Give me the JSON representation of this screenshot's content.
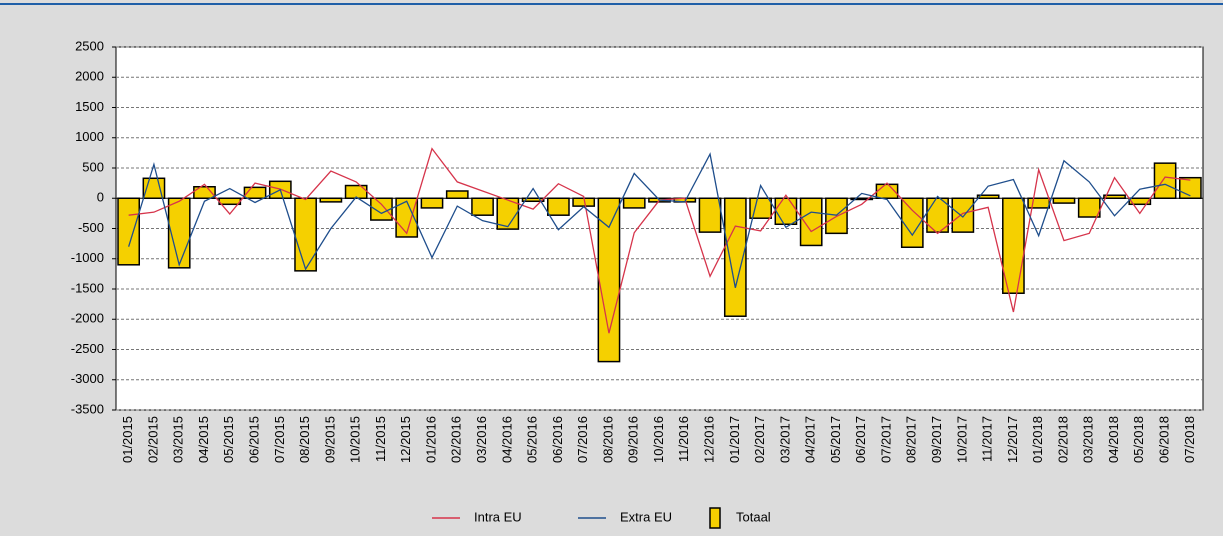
{
  "chart_data": {
    "type": "bar",
    "categories": [
      "01/2015",
      "02/2015",
      "03/2015",
      "04/2015",
      "05/2015",
      "06/2015",
      "07/2015",
      "08/2015",
      "09/2015",
      "10/2015",
      "11/2015",
      "12/2015",
      "01/2016",
      "02/2016",
      "03/2016",
      "04/2016",
      "05/2016",
      "06/2016",
      "07/2016",
      "08/2016",
      "09/2016",
      "10/2016",
      "11/2016",
      "12/2016",
      "01/2017",
      "02/2017",
      "03/2017",
      "04/2017",
      "05/2017",
      "06/2017",
      "07/2017",
      "08/2017",
      "09/2017",
      "10/2017",
      "11/2017",
      "12/2017",
      "01/2018",
      "02/2018",
      "03/2018",
      "04/2018",
      "05/2018",
      "06/2018",
      "07/2018"
    ],
    "series": [
      {
        "name": "Intra EU",
        "type": "line",
        "color": "#d6344b",
        "values": [
          -280,
          -230,
          -50,
          230,
          -260,
          250,
          150,
          -20,
          450,
          270,
          -100,
          -580,
          820,
          270,
          120,
          -30,
          -180,
          240,
          30,
          -2230,
          -570,
          -30,
          0,
          -1290,
          -460,
          -540,
          50,
          -550,
          -300,
          -100,
          250,
          -200,
          -580,
          -250,
          -150,
          -1880,
          470,
          -700,
          -580,
          340,
          -250,
          350,
          300
        ]
      },
      {
        "name": "Extra EU",
        "type": "line",
        "color": "#1f4e8c",
        "values": [
          -800,
          560,
          -1100,
          -50,
          160,
          -70,
          140,
          -1170,
          -500,
          20,
          -250,
          -50,
          -980,
          -130,
          -370,
          -470,
          160,
          -520,
          -140,
          -480,
          410,
          -30,
          -60,
          730,
          -1480,
          210,
          -480,
          -230,
          -280,
          80,
          -20,
          -610,
          30,
          -310,
          200,
          310,
          -620,
          620,
          270,
          -290,
          150,
          230,
          40
        ]
      },
      {
        "name": "Totaal",
        "type": "bar",
        "color": "#f5d000",
        "values": [
          -1100,
          330,
          -1150,
          190,
          -100,
          180,
          280,
          -1200,
          -60,
          210,
          -360,
          -640,
          -160,
          120,
          -280,
          -510,
          -50,
          -280,
          -130,
          -2700,
          -160,
          -60,
          -60,
          -560,
          -1950,
          -330,
          -430,
          -780,
          -580,
          -20,
          230,
          -810,
          -560,
          -560,
          50,
          -1570,
          -160,
          -80,
          -310,
          50,
          -100,
          580,
          340
        ]
      }
    ],
    "ylim": [
      -3500,
      2500
    ],
    "yticks": [
      -3500,
      -3000,
      -2500,
      -2000,
      -1500,
      -1000,
      -500,
      0,
      500,
      1000,
      1500,
      2000,
      2500
    ],
    "grid": true,
    "legend": "bottom"
  }
}
